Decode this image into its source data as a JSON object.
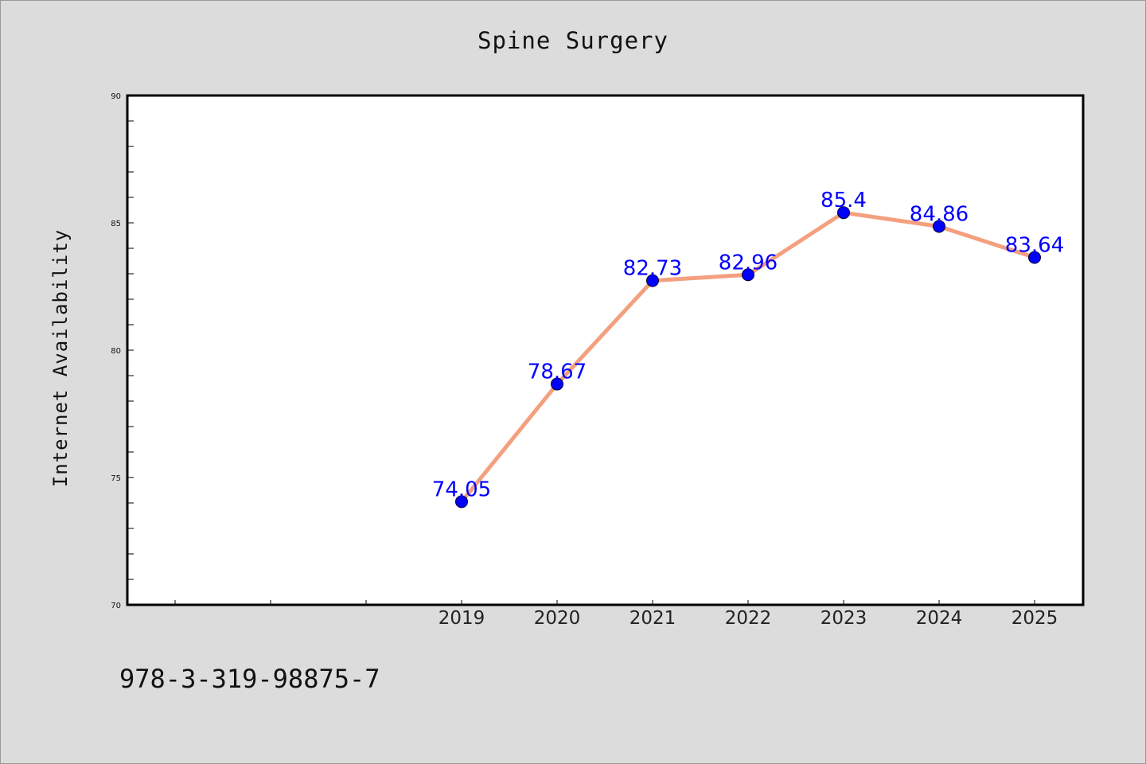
{
  "chart_data": {
    "type": "line",
    "title": "Spine Surgery",
    "xlabel": "",
    "ylabel": "Internet Availability",
    "x": [
      "2019",
      "2020",
      "2021",
      "2022",
      "2023",
      "2024",
      "2025"
    ],
    "series": [
      {
        "values": [
          74.05,
          78.67,
          82.73,
          82.96,
          85.4,
          84.86,
          83.64
        ],
        "labels": [
          "74.05",
          "78.67",
          "82.73",
          "82.96",
          "85.4",
          "84.86",
          "83.64"
        ]
      }
    ],
    "ylim": [
      70,
      90
    ],
    "yticks": [
      "70",
      "75",
      "80",
      "85",
      "90"
    ],
    "grid": false,
    "colors": {
      "line": "#f4a07e",
      "marker": "#0000ff",
      "labels": "#0000ff"
    }
  },
  "footnote": "978-3-319-98875-7"
}
